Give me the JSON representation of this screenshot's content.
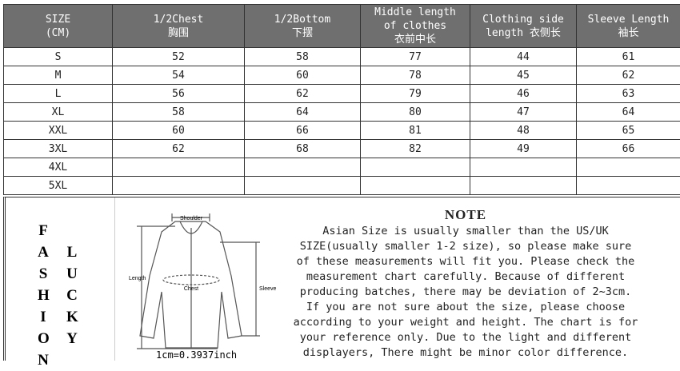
{
  "table": {
    "headers": [
      [
        "SIZE",
        "(CM)"
      ],
      [
        "1/2Chest",
        "胸围"
      ],
      [
        "1/2Bottom",
        "下摆"
      ],
      [
        "Middle length",
        "of clothes",
        "衣前中长"
      ],
      [
        "Clothing side",
        "length  衣侧长"
      ],
      [
        "Sleeve Length",
        "袖长"
      ]
    ],
    "rows": [
      [
        "S",
        "52",
        "58",
        "77",
        "44",
        "61"
      ],
      [
        "M",
        "54",
        "60",
        "78",
        "45",
        "62"
      ],
      [
        "L",
        "56",
        "62",
        "79",
        "46",
        "63"
      ],
      [
        "XL",
        "58",
        "64",
        "80",
        "47",
        "64"
      ],
      [
        "XXL",
        "60",
        "66",
        "81",
        "48",
        "65"
      ],
      [
        "3XL",
        "62",
        "68",
        "82",
        "49",
        "66"
      ],
      [
        "4XL",
        "",
        "",
        "",
        "",
        ""
      ],
      [
        "5XL",
        "",
        "",
        "",
        "",
        ""
      ]
    ]
  },
  "brand": {
    "col1": [
      "F",
      "A",
      "S",
      "H",
      "I",
      "O",
      "N"
    ],
    "col2": [
      "L",
      "U",
      "C",
      "K",
      "Y"
    ]
  },
  "diagram": {
    "shoulder": "Shoulder",
    "length": "Length",
    "chest": "Chest",
    "sleeve": "Sleeve",
    "conversion": "1cm=0.3937inch"
  },
  "note": {
    "title": "NOTE",
    "lines": [
      "Asian Size is usually smaller than the US/UK",
      "SIZE(usually smaller 1-2 size), so please make sure",
      "of these measurements will fit you. Please check the",
      "measurement chart carefully. Because of different",
      "producing batches, there may be deviation of 2~3cm.",
      "If you are not sure about the size, please choose",
      "according to your weight and height. The chart is for",
      "your reference only. Due to the light and different",
      "displayers, There might be minor color difference."
    ]
  }
}
